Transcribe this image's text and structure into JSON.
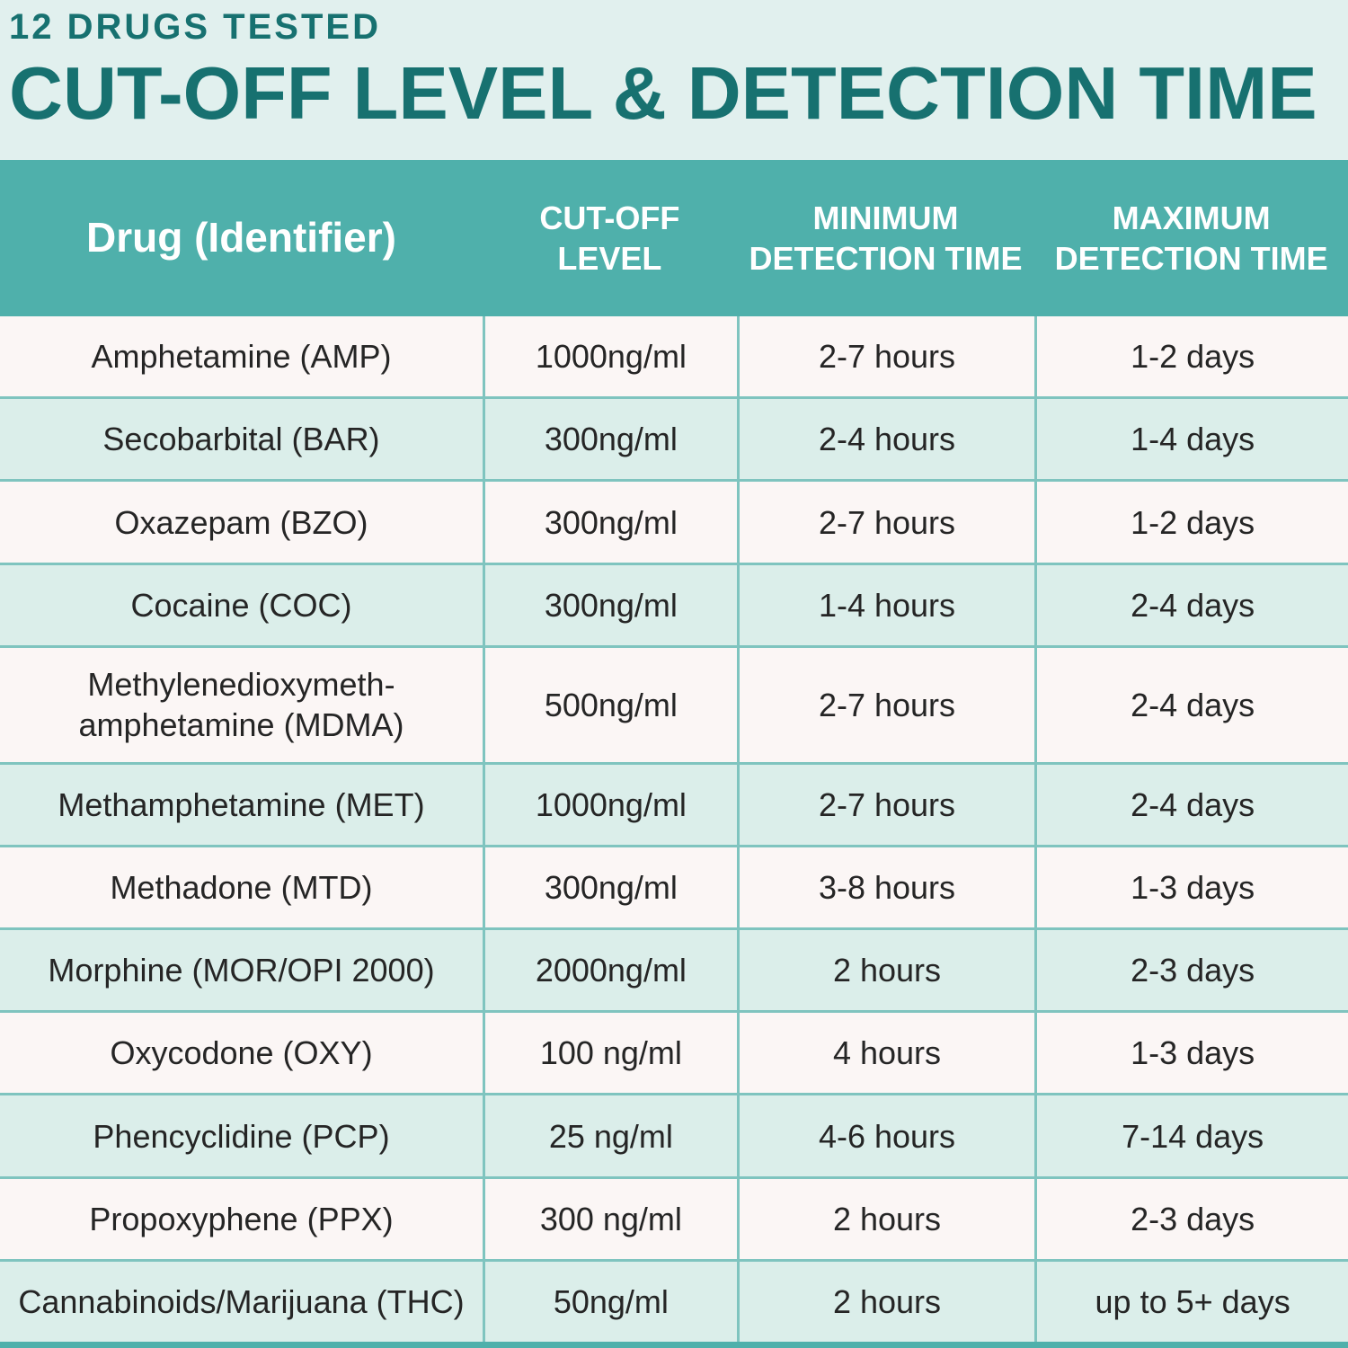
{
  "chart_data": {
    "type": "table",
    "subtitle": "12 DRUGS TESTED",
    "title": "CUT-OFF LEVEL & DETECTION TIME",
    "columns": [
      "Drug (Identifier)",
      "CUT-OFF LEVEL",
      "MINIMUM DETECTION TIME",
      "MAXIMUM DETECTION TIME"
    ],
    "rows": [
      {
        "drug": "Amphetamine (AMP)",
        "cutoff_level": "1000ng/ml",
        "min_detection_time": "2-7 hours",
        "max_detection_time": "1-2 days"
      },
      {
        "drug": "Secobarbital (BAR)",
        "cutoff_level": "300ng/ml",
        "min_detection_time": "2-4 hours",
        "max_detection_time": "1-4 days"
      },
      {
        "drug": "Oxazepam (BZO)",
        "cutoff_level": "300ng/ml",
        "min_detection_time": "2-7 hours",
        "max_detection_time": "1-2 days"
      },
      {
        "drug": "Cocaine (COC)",
        "cutoff_level": "300ng/ml",
        "min_detection_time": "1-4 hours",
        "max_detection_time": "2-4 days"
      },
      {
        "drug": "Methylenedioxymeth-amphetamine (MDMA)",
        "cutoff_level": "500ng/ml",
        "min_detection_time": "2-7 hours",
        "max_detection_time": "2-4 days"
      },
      {
        "drug": "Methamphetamine (MET)",
        "cutoff_level": "1000ng/ml",
        "min_detection_time": "2-7 hours",
        "max_detection_time": "2-4 days"
      },
      {
        "drug": "Methadone (MTD)",
        "cutoff_level": "300ng/ml",
        "min_detection_time": "3-8 hours",
        "max_detection_time": "1-3 days"
      },
      {
        "drug": "Morphine (MOR/OPI 2000)",
        "cutoff_level": "2000ng/ml",
        "min_detection_time": "2 hours",
        "max_detection_time": "2-3 days"
      },
      {
        "drug": "Oxycodone (OXY)",
        "cutoff_level": "100 ng/ml",
        "min_detection_time": "4 hours",
        "max_detection_time": "1-3 days"
      },
      {
        "drug": "Phencyclidine (PCP)",
        "cutoff_level": "25 ng/ml",
        "min_detection_time": "4-6 hours",
        "max_detection_time": "7-14 days"
      },
      {
        "drug": "Propoxyphene (PPX)",
        "cutoff_level": "300 ng/ml",
        "min_detection_time": "2 hours",
        "max_detection_time": "2-3 days"
      },
      {
        "drug": "Cannabinoids/Marijuana (THC)",
        "cutoff_level": "50ng/ml",
        "min_detection_time": "2 hours",
        "max_detection_time": "up to 5+ days"
      }
    ]
  },
  "colors": {
    "page_background": "#e1f0ee",
    "title_text": "#177170",
    "table_header_background": "#4fb0ab",
    "table_header_text": "#ffffff",
    "row_white": "#fbf6f5",
    "row_alternate": "#dbeeea",
    "divider": "#7fc4bf",
    "cell_text": "#252525"
  }
}
